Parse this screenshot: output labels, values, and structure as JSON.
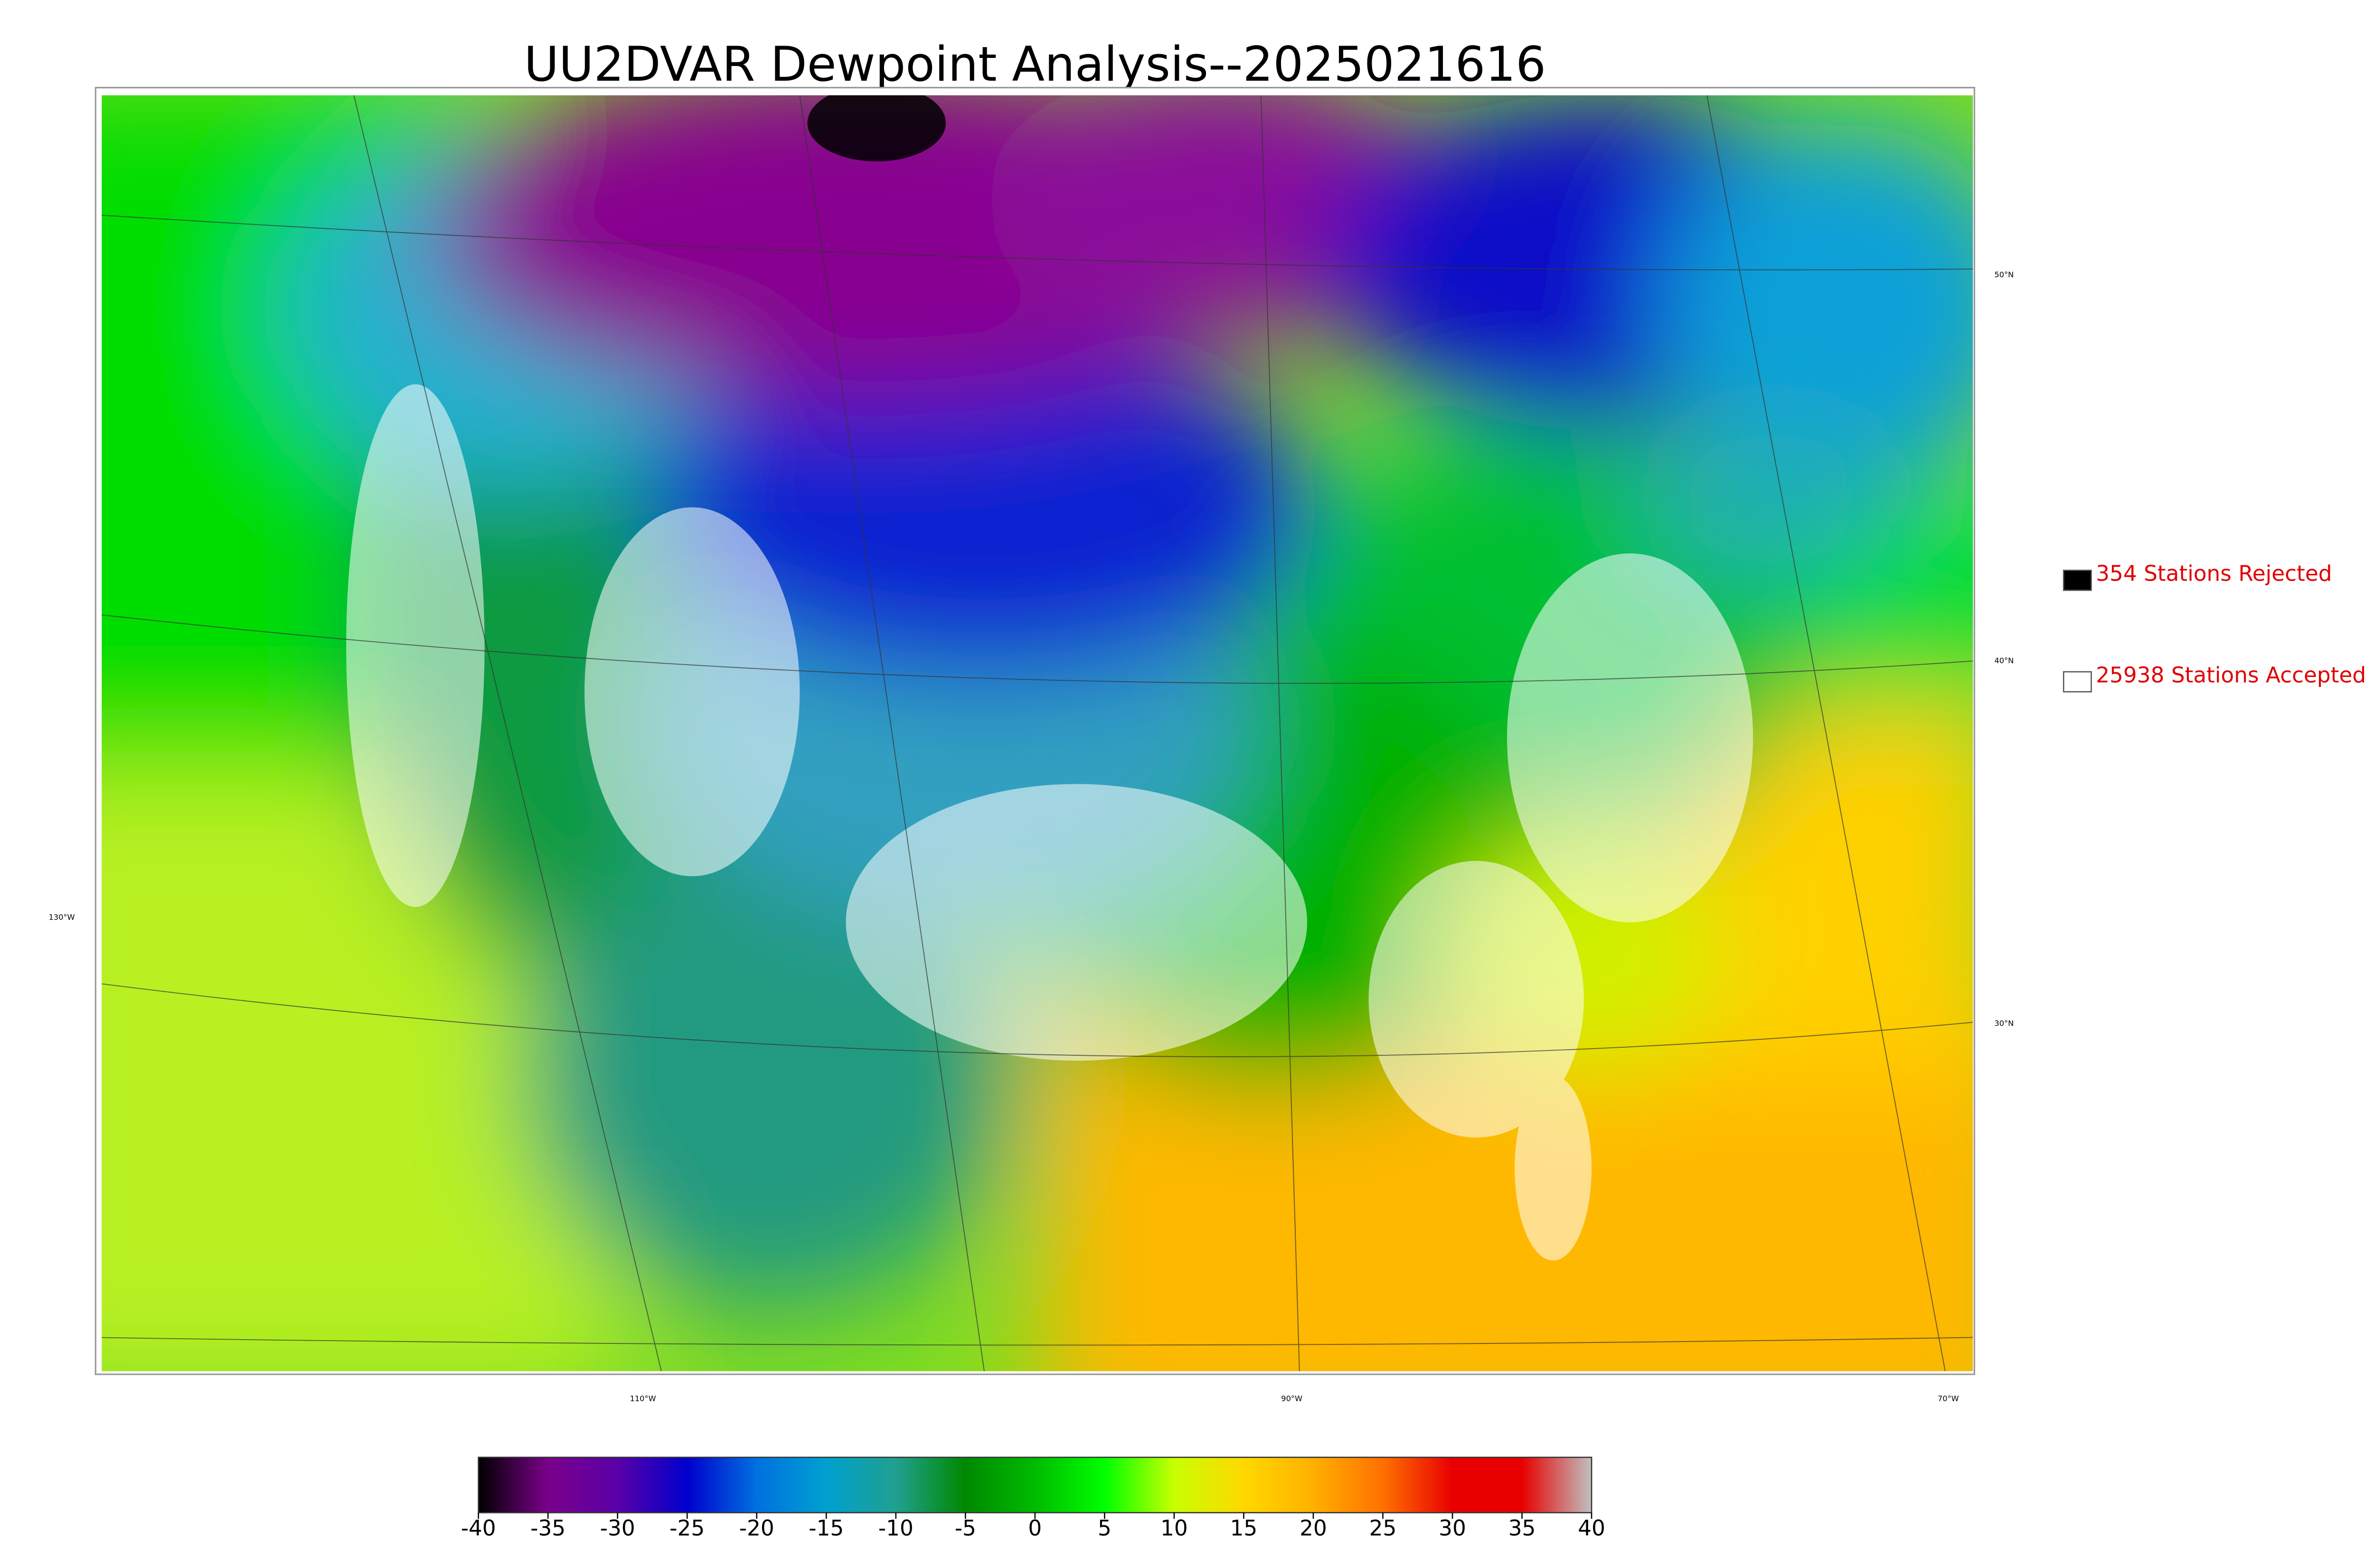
{
  "title": "UU2DVAR Dewpoint Analysis--2025021616",
  "legend": [
    "354 Stations Rejected",
    "25938 Stations Accepted"
  ],
  "latitude_labels": [
    "50°N",
    "40°N",
    "30°N"
  ],
  "longitude_labels": [
    "130°W",
    "110°W",
    "90°W",
    "70°W"
  ],
  "colorbar": {
    "lim": [
      -40,
      40
    ],
    "ticks": [
      -40,
      -35,
      -30,
      -25,
      -20,
      -15,
      -10,
      -5,
      0,
      5,
      10,
      15,
      20,
      25,
      30,
      35,
      40
    ],
    "colors": [
      "#000000",
      "#7a008a",
      "#5a00a8",
      "#0000cc",
      "#0070e0",
      "#00a0d0",
      "#20a090",
      "#008800",
      "#00bb00",
      "#00ff00",
      "#c8ff00",
      "#ffd800",
      "#ffb000",
      "#ff7000",
      "#e80000",
      "#e80000",
      "#c0c0c0"
    ]
  }
}
